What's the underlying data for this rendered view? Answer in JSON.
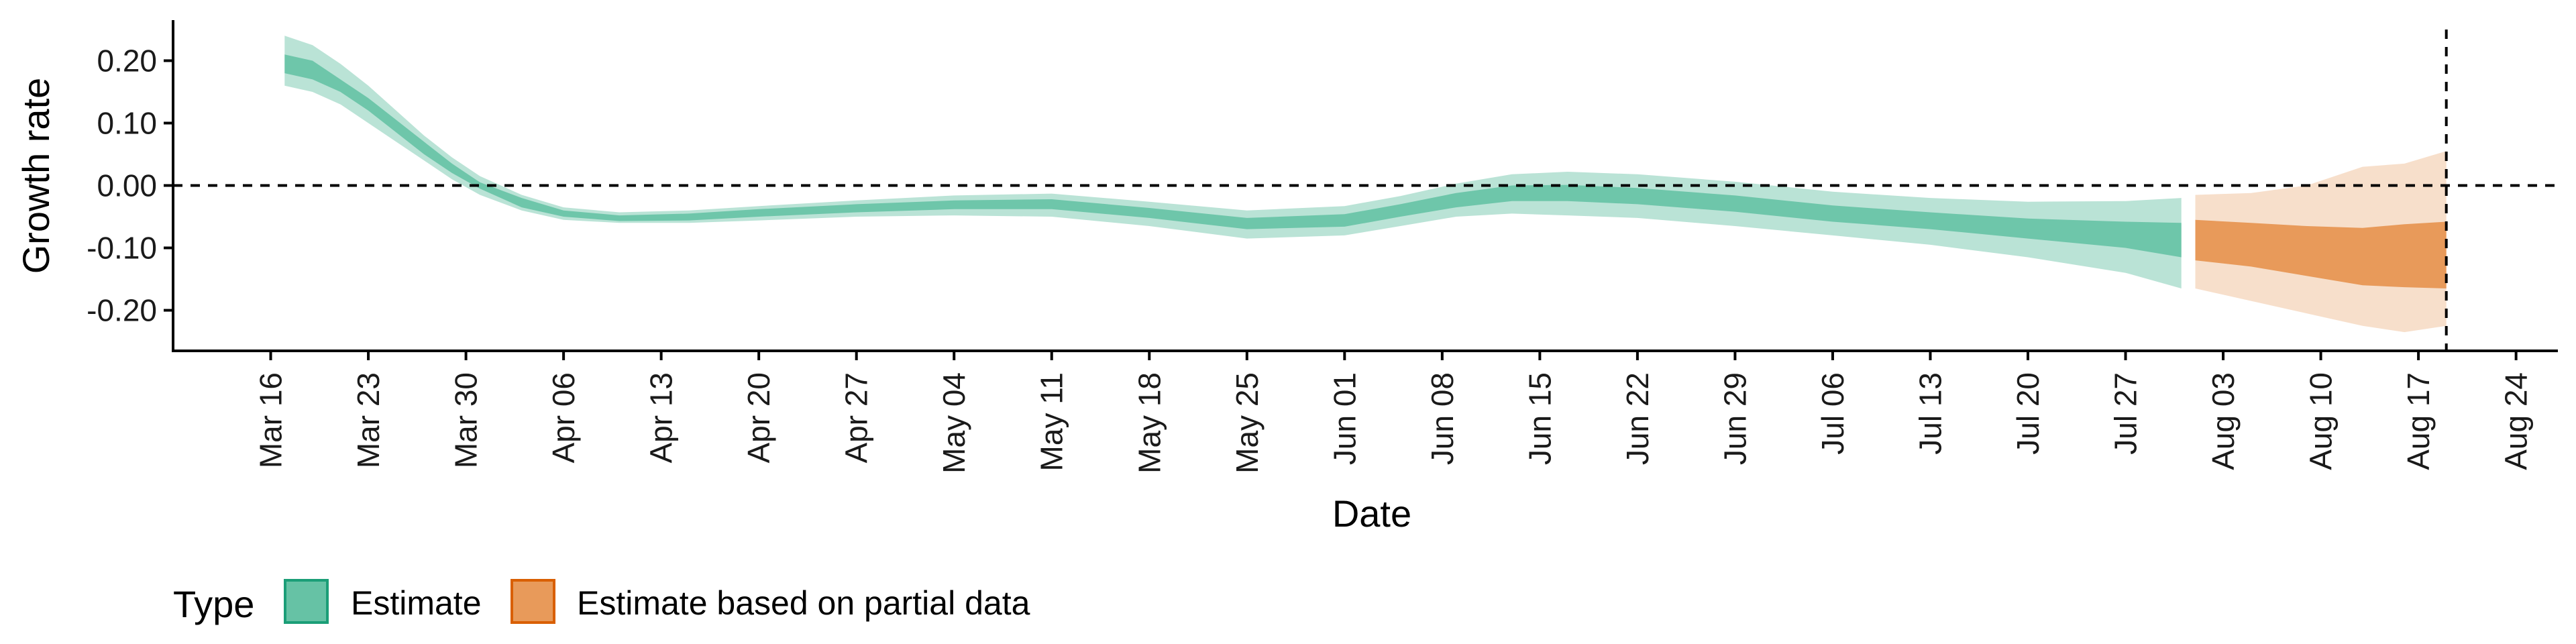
{
  "chart_data": {
    "type": "area",
    "xlabel": "Date",
    "ylabel": "Growth rate",
    "xlim": [
      "2020-03-09",
      "2020-08-27"
    ],
    "ylim": [
      -0.265,
      0.265
    ],
    "x_ticks": [
      "2020-03-16",
      "2020-03-23",
      "2020-03-30",
      "2020-04-06",
      "2020-04-13",
      "2020-04-20",
      "2020-04-27",
      "2020-05-04",
      "2020-05-11",
      "2020-05-18",
      "2020-05-25",
      "2020-06-01",
      "2020-06-08",
      "2020-06-15",
      "2020-06-22",
      "2020-06-29",
      "2020-07-06",
      "2020-07-13",
      "2020-07-20",
      "2020-07-27",
      "2020-08-03",
      "2020-08-10",
      "2020-08-17",
      "2020-08-24"
    ],
    "x_tick_labels": [
      "Mar 16",
      "Mar 23",
      "Mar 30",
      "Apr 06",
      "Apr 13",
      "Apr 20",
      "Apr 27",
      "May 04",
      "May 11",
      "May 18",
      "May 25",
      "Jun 01",
      "Jun 08",
      "Jun 15",
      "Jun 22",
      "Jun 29",
      "Jul 06",
      "Jul 13",
      "Jul 20",
      "Jul 27",
      "Aug 03",
      "Aug 10",
      "Aug 17",
      "Aug 24"
    ],
    "y_ticks": [
      0.2,
      0.1,
      0.0,
      -0.1,
      -0.2
    ],
    "y_tick_labels": [
      "0.20",
      "0.10",
      "0.00",
      "-0.10",
      "-0.20"
    ],
    "hline": 0.0,
    "vline": "2020-08-19",
    "legend": {
      "title": "Type",
      "position": "bottom",
      "entries": [
        {
          "label": "Estimate",
          "fill": "#66c2a5",
          "stroke": "#1b9e77"
        },
        {
          "label": "Estimate based on partial data",
          "fill": "#e89a5a",
          "stroke": "#d95f02"
        }
      ]
    },
    "series": [
      {
        "name": "Estimate",
        "inner_color": "#66c2a5",
        "outer_color": "#66c2a5",
        "points": [
          {
            "x": "2020-03-17",
            "lo90": 0.16,
            "lo50": 0.18,
            "hi50": 0.21,
            "hi90": 0.24
          },
          {
            "x": "2020-03-19",
            "lo90": 0.15,
            "lo50": 0.17,
            "hi50": 0.2,
            "hi90": 0.225
          },
          {
            "x": "2020-03-21",
            "lo90": 0.13,
            "lo50": 0.15,
            "hi50": 0.17,
            "hi90": 0.195
          },
          {
            "x": "2020-03-23",
            "lo90": 0.1,
            "lo50": 0.12,
            "hi50": 0.14,
            "hi90": 0.16
          },
          {
            "x": "2020-03-25",
            "lo90": 0.07,
            "lo50": 0.085,
            "hi50": 0.105,
            "hi90": 0.12
          },
          {
            "x": "2020-03-27",
            "lo90": 0.04,
            "lo50": 0.05,
            "hi50": 0.07,
            "hi90": 0.08
          },
          {
            "x": "2020-03-29",
            "lo90": 0.01,
            "lo50": 0.02,
            "hi50": 0.035,
            "hi90": 0.045
          },
          {
            "x": "2020-03-31",
            "lo90": -0.015,
            "lo50": -0.005,
            "hi50": 0.005,
            "hi90": 0.015
          },
          {
            "x": "2020-04-03",
            "lo90": -0.04,
            "lo50": -0.035,
            "hi50": -0.02,
            "hi90": -0.015
          },
          {
            "x": "2020-04-06",
            "lo90": -0.055,
            "lo50": -0.05,
            "hi50": -0.04,
            "hi90": -0.035
          },
          {
            "x": "2020-04-10",
            "lo90": -0.06,
            "lo50": -0.057,
            "hi50": -0.048,
            "hi90": -0.043
          },
          {
            "x": "2020-04-15",
            "lo90": -0.06,
            "lo50": -0.056,
            "hi50": -0.045,
            "hi90": -0.04
          },
          {
            "x": "2020-04-20",
            "lo90": -0.056,
            "lo50": -0.05,
            "hi50": -0.038,
            "hi90": -0.033
          },
          {
            "x": "2020-04-27",
            "lo90": -0.05,
            "lo50": -0.043,
            "hi50": -0.03,
            "hi90": -0.024
          },
          {
            "x": "2020-05-04",
            "lo90": -0.048,
            "lo50": -0.038,
            "hi50": -0.024,
            "hi90": -0.016
          },
          {
            "x": "2020-05-11",
            "lo90": -0.05,
            "lo50": -0.038,
            "hi50": -0.022,
            "hi90": -0.013
          },
          {
            "x": "2020-05-18",
            "lo90": -0.065,
            "lo50": -0.052,
            "hi50": -0.036,
            "hi90": -0.026
          },
          {
            "x": "2020-05-25",
            "lo90": -0.085,
            "lo50": -0.07,
            "hi50": -0.052,
            "hi90": -0.04
          },
          {
            "x": "2020-06-01",
            "lo90": -0.08,
            "lo50": -0.066,
            "hi50": -0.046,
            "hi90": -0.033
          },
          {
            "x": "2020-06-05",
            "lo90": -0.065,
            "lo50": -0.05,
            "hi50": -0.03,
            "hi90": -0.017
          },
          {
            "x": "2020-06-09",
            "lo90": -0.05,
            "lo50": -0.035,
            "hi50": -0.012,
            "hi90": 0.003
          },
          {
            "x": "2020-06-13",
            "lo90": -0.045,
            "lo50": -0.025,
            "hi50": 0.0,
            "hi90": 0.018
          },
          {
            "x": "2020-06-17",
            "lo90": -0.048,
            "lo50": -0.025,
            "hi50": 0.001,
            "hi90": 0.022
          },
          {
            "x": "2020-06-22",
            "lo90": -0.052,
            "lo50": -0.03,
            "hi50": -0.004,
            "hi90": 0.018
          },
          {
            "x": "2020-06-29",
            "lo90": -0.065,
            "lo50": -0.042,
            "hi50": -0.016,
            "hi90": 0.006
          },
          {
            "x": "2020-07-06",
            "lo90": -0.08,
            "lo50": -0.058,
            "hi50": -0.032,
            "hi90": -0.01
          },
          {
            "x": "2020-07-13",
            "lo90": -0.095,
            "lo50": -0.07,
            "hi50": -0.043,
            "hi90": -0.02
          },
          {
            "x": "2020-07-20",
            "lo90": -0.115,
            "lo50": -0.085,
            "hi50": -0.053,
            "hi90": -0.026
          },
          {
            "x": "2020-07-27",
            "lo90": -0.14,
            "lo50": -0.1,
            "hi50": -0.058,
            "hi90": -0.025
          },
          {
            "x": "2020-07-31",
            "lo90": -0.165,
            "lo50": -0.115,
            "hi50": -0.06,
            "hi90": -0.02
          }
        ]
      },
      {
        "name": "Estimate based on partial data",
        "inner_color": "#e89a5a",
        "outer_color": "#f2c9a8",
        "points": [
          {
            "x": "2020-08-01",
            "lo90": -0.165,
            "lo50": -0.12,
            "hi50": -0.055,
            "hi90": -0.015
          },
          {
            "x": "2020-08-05",
            "lo90": -0.185,
            "lo50": -0.13,
            "hi50": -0.06,
            "hi90": -0.012
          },
          {
            "x": "2020-08-09",
            "lo90": -0.205,
            "lo50": -0.145,
            "hi50": -0.065,
            "hi90": 0.0
          },
          {
            "x": "2020-08-13",
            "lo90": -0.225,
            "lo50": -0.16,
            "hi50": -0.068,
            "hi90": 0.03
          },
          {
            "x": "2020-08-16",
            "lo90": -0.235,
            "lo50": -0.163,
            "hi50": -0.062,
            "hi90": 0.035
          },
          {
            "x": "2020-08-19",
            "lo90": -0.225,
            "lo50": -0.165,
            "hi50": -0.058,
            "hi90": 0.055
          }
        ]
      }
    ]
  }
}
